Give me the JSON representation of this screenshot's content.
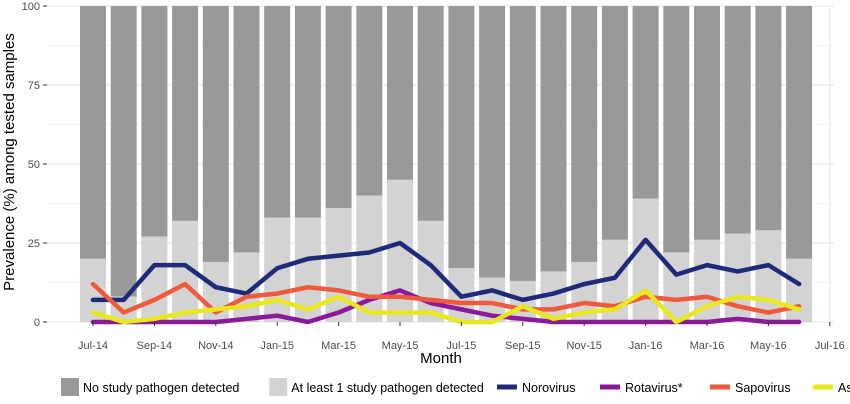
{
  "chart_data": {
    "type": "bar",
    "xlabel": "Month",
    "ylabel": "Prevalence (%) among tested samples",
    "ylim": [
      0,
      100
    ],
    "yticks": [
      0,
      25,
      50,
      75,
      100
    ],
    "x_tick_labels": [
      "Jul-14",
      "Sep-14",
      "Nov-14",
      "Jan-15",
      "Mar-15",
      "May-15",
      "Jul-15",
      "Sep-15",
      "Nov-15",
      "Jan-16",
      "Mar-16",
      "May-16",
      "Jul-16"
    ],
    "categories": [
      "Jul-14",
      "Aug-14",
      "Sep-14",
      "Oct-14",
      "Nov-14",
      "Dec-14",
      "Jan-15",
      "Feb-15",
      "Mar-15",
      "Apr-15",
      "May-15",
      "Jun-15",
      "Jul-15",
      "Aug-15",
      "Sep-15",
      "Oct-15",
      "Nov-15",
      "Dec-15",
      "Jan-16",
      "Feb-16",
      "Mar-16",
      "Apr-16",
      "May-16",
      "Jun-16"
    ],
    "bars": {
      "total": [
        100,
        100,
        100,
        100,
        100,
        100,
        100,
        100,
        100,
        100,
        100,
        100,
        100,
        100,
        100,
        100,
        100,
        100,
        100,
        100,
        100,
        100,
        100,
        100
      ],
      "at_least_one": [
        20,
        8,
        27,
        32,
        19,
        22,
        33,
        33,
        36,
        40,
        45,
        32,
        17,
        14,
        13,
        16,
        19,
        26,
        39,
        22,
        26,
        28,
        29,
        20
      ]
    },
    "legend": {
      "position": "bottom",
      "bar_entries": [
        {
          "label": "No study pathogen detected",
          "color": "#999999"
        },
        {
          "label": "At least 1 study pathogen detected",
          "color": "#d3d3d3"
        }
      ]
    },
    "series": [
      {
        "name": "Norovirus",
        "color": "#1f2a7a",
        "values": [
          7,
          7,
          18,
          18,
          11,
          9,
          17,
          20,
          21,
          22,
          25,
          18,
          8,
          10,
          7,
          9,
          12,
          14,
          26,
          15,
          18,
          16,
          18,
          12
        ]
      },
      {
        "name": "Rotavirus*",
        "color": "#8b1a9a",
        "values": [
          0,
          0,
          0,
          0,
          0,
          1,
          2,
          0,
          3,
          7,
          10,
          6,
          4,
          2,
          1,
          0,
          0,
          0,
          0,
          0,
          0,
          1,
          0,
          0
        ]
      },
      {
        "name": "Sapovirus",
        "color": "#f05a3c",
        "values": [
          12,
          3,
          7,
          12,
          3,
          8,
          9,
          11,
          10,
          8,
          8,
          7,
          6,
          6,
          4,
          4,
          6,
          5,
          8,
          7,
          8,
          5,
          3,
          5
        ]
      },
      {
        "name": "Astrovirus",
        "color": "#e8e81a",
        "values": [
          3,
          0,
          1,
          3,
          4,
          5,
          7,
          4,
          8,
          3,
          3,
          3,
          0,
          0,
          5,
          1,
          3,
          4,
          10,
          0,
          5,
          8,
          7,
          4
        ]
      }
    ],
    "grid": true
  }
}
